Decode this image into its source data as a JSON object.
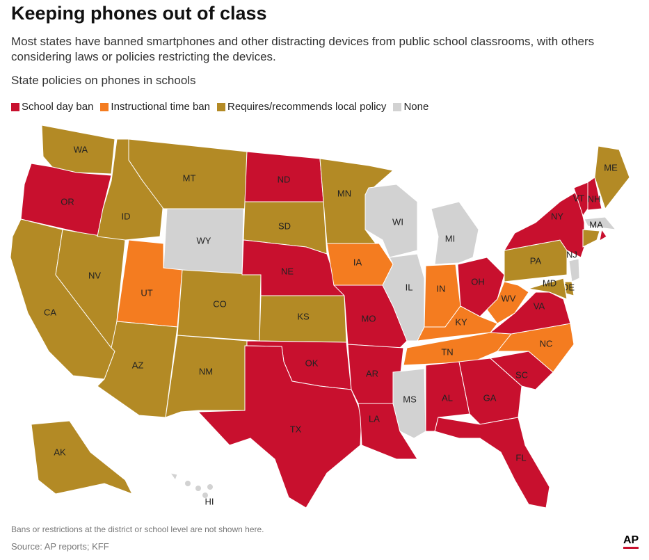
{
  "header": {
    "title": "Keeping phones out of class",
    "subtitle": "Most states have banned smartphones and other distracting devices from public school classrooms, with others considering laws or policies restricting the devices."
  },
  "map_title": "State policies on phones in schools",
  "legend": [
    {
      "label": "School day ban",
      "color": "#c8102e"
    },
    {
      "label": "Instructional time ban",
      "color": "#f47c20"
    },
    {
      "label": "Requires/recommends local policy",
      "color": "#b38a25"
    },
    {
      "label": "None",
      "color": "#d2d2d2"
    }
  ],
  "states": [
    {
      "label": "WA",
      "policy": 2
    },
    {
      "label": "OR",
      "policy": 0
    },
    {
      "label": "CA",
      "policy": 2
    },
    {
      "label": "NV",
      "policy": 2
    },
    {
      "label": "ID",
      "policy": 2
    },
    {
      "label": "MT",
      "policy": 2
    },
    {
      "label": "WY",
      "policy": 3
    },
    {
      "label": "UT",
      "policy": 1
    },
    {
      "label": "CO",
      "policy": 2
    },
    {
      "label": "AZ",
      "policy": 2
    },
    {
      "label": "NM",
      "policy": 2
    },
    {
      "label": "ND",
      "policy": 0
    },
    {
      "label": "SD",
      "policy": 2
    },
    {
      "label": "NE",
      "policy": 0
    },
    {
      "label": "KS",
      "policy": 2
    },
    {
      "label": "OK",
      "policy": 0
    },
    {
      "label": "TX",
      "policy": 0
    },
    {
      "label": "MN",
      "policy": 2
    },
    {
      "label": "IA",
      "policy": 1
    },
    {
      "label": "MO",
      "policy": 0
    },
    {
      "label": "AR",
      "policy": 0
    },
    {
      "label": "LA",
      "policy": 0
    },
    {
      "label": "WI",
      "policy": 3
    },
    {
      "label": "IL",
      "policy": 3
    },
    {
      "label": "MI",
      "policy": 3
    },
    {
      "label": "IN",
      "policy": 1
    },
    {
      "label": "OH",
      "policy": 0
    },
    {
      "label": "KY",
      "policy": 1
    },
    {
      "label": "TN",
      "policy": 1
    },
    {
      "label": "MS",
      "policy": 3
    },
    {
      "label": "AL",
      "policy": 0
    },
    {
      "label": "GA",
      "policy": 0
    },
    {
      "label": "FL",
      "policy": 0
    },
    {
      "label": "SC",
      "policy": 0
    },
    {
      "label": "NC",
      "policy": 1
    },
    {
      "label": "VA",
      "policy": 0
    },
    {
      "label": "WV",
      "policy": 1
    },
    {
      "label": "PA",
      "policy": 2
    },
    {
      "label": "NY",
      "policy": 0
    },
    {
      "label": "VT",
      "policy": 0
    },
    {
      "label": "NH",
      "policy": 0
    },
    {
      "label": "ME",
      "policy": 2
    },
    {
      "label": "MA",
      "policy": 3
    },
    {
      "policy": 0
    },
    {
      "policy": 2
    },
    {
      "label": "NJ",
      "policy": 3
    },
    {
      "label": "DE",
      "policy": 2
    },
    {
      "label": "MD",
      "policy": 2
    },
    {
      "label": "AK",
      "policy": 2
    },
    {
      "label": "HI",
      "policy": 3
    }
  ],
  "note": "Bans or restrictions at the district or school level are not shown here.",
  "source": "Source: AP reports; KFF",
  "logo": "AP"
}
